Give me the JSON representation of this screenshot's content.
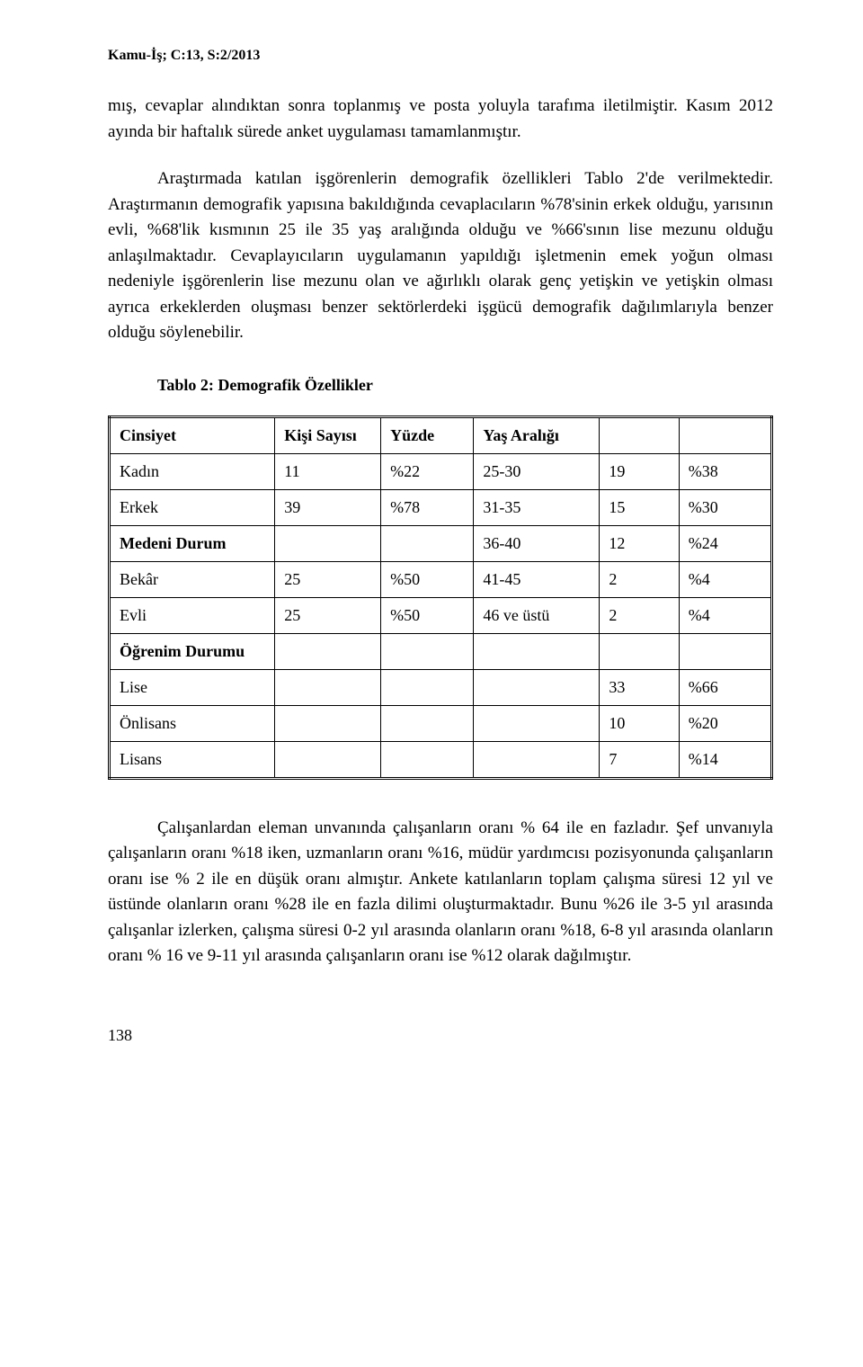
{
  "header": "Kamu-İş; C:13, S:2/2013",
  "para1": "mış, cevaplar alındıktan sonra toplanmış ve posta yoluyla tarafıma iletilmiştir. Kasım 2012 ayında bir haftalık sürede anket uygulaması tamamlanmıştır.",
  "para2": "Araştırmada katılan işgörenlerin demografik özellikleri Tablo 2'de verilmektedir. Araştırmanın demografik yapısına bakıldığında cevaplacıların %78'sinin erkek olduğu, yarısının evli, %68'lik kısmının 25 ile 35 yaş aralığında olduğu ve %66'sının lise mezunu olduğu anlaşılmaktadır. Cevaplayıcıların uygulamanın yapıldığı işletmenin emek yoğun olması nedeniyle işgörenlerin lise mezunu olan ve ağırlıklı olarak genç yetişkin ve yetişkin olması ayrıca erkeklerden oluşması benzer sektörlerdeki işgücü demografik dağılımlarıyla benzer olduğu söylenebilir.",
  "table_title": "Tablo 2: Demografik Özellikler",
  "table": {
    "headers": {
      "cinsiyet": "Cinsiyet",
      "kisi_sayisi": "Kişi Sayısı",
      "yuzde": "Yüzde",
      "yas_araligi": "Yaş Aralığı"
    },
    "rows": [
      {
        "c0": "Kadın",
        "c1": "11",
        "c2": "%22",
        "c3": "25-30",
        "c4": "19",
        "c5": "%38"
      },
      {
        "c0": "Erkek",
        "c1": "39",
        "c2": "%78",
        "c3": "31-35",
        "c4": "15",
        "c5": "%30"
      },
      {
        "c0": "Medeni Durum",
        "c1": "",
        "c2": "",
        "c3": "36-40",
        "c4": "12",
        "c5": "%24"
      },
      {
        "c0": "Bekâr",
        "c1": "25",
        "c2": "%50",
        "c3": "41-45",
        "c4": "2",
        "c5": "%4"
      },
      {
        "c0": "Evli",
        "c1": "25",
        "c2": "%50",
        "c3": "46 ve üstü",
        "c4": "2",
        "c5": "%4"
      },
      {
        "c0": "Öğrenim Durumu",
        "c1": "",
        "c2": "",
        "c3": "",
        "c4": "",
        "c5": ""
      },
      {
        "c0": "Lise",
        "c1": "",
        "c2": "",
        "c3": "",
        "c4": "33",
        "c5": "%66"
      },
      {
        "c0": "Önlisans",
        "c1": "",
        "c2": "",
        "c3": "",
        "c4": "10",
        "c5": "%20"
      },
      {
        "c0": "Lisans",
        "c1": "",
        "c2": "",
        "c3": "",
        "c4": "7",
        "c5": "%14"
      }
    ],
    "bold_rows": [
      2,
      5
    ]
  },
  "para3": "Çalışanlardan eleman unvanında çalışanların oranı % 64 ile en fazladır. Şef unvanıyla çalışanların oranı %18 iken, uzmanların oranı %16, müdür yardımcısı pozisyonunda çalışanların oranı ise % 2 ile en düşük oranı almıştır. Ankete katılanların toplam çalışma süresi 12 yıl ve üstünde olanların oranı %28 ile en fazla dilimi oluşturmaktadır. Bunu %26 ile 3-5 yıl arasında çalışanlar izlerken, çalışma süresi 0-2 yıl arasında olanların oranı %18, 6-8 yıl arasında olanların oranı  % 16 ve 9-11 yıl arasında çalışanların oranı ise %12 olarak dağılmıştır.",
  "page_number": "138"
}
